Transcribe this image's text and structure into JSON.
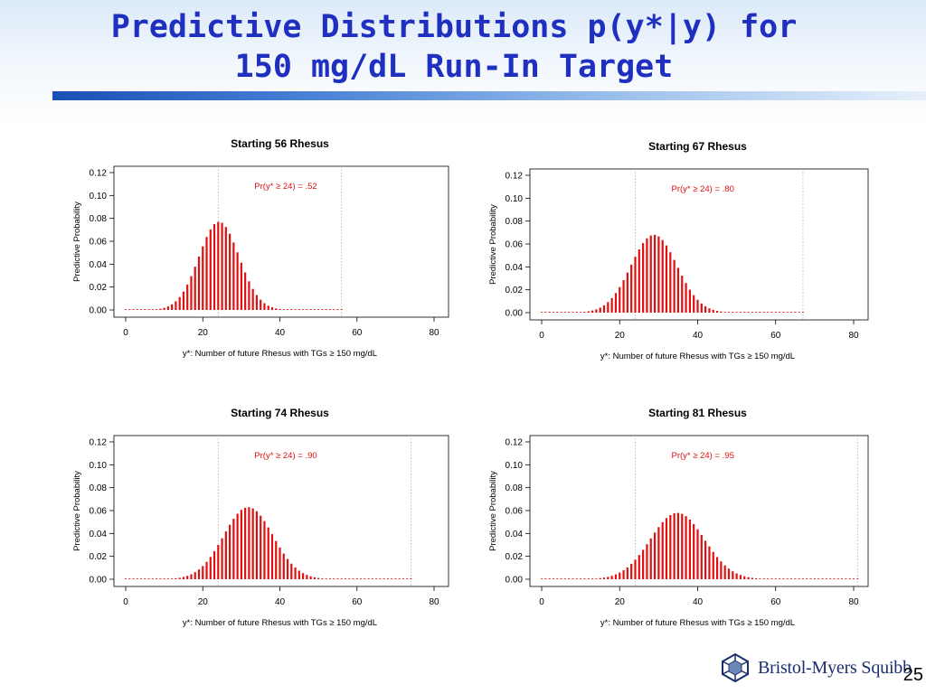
{
  "slide": {
    "title_line1": "Predictive Distributions p(y*|y) for",
    "title_line2": "150 mg/dL Run-In Target",
    "page_number": "25",
    "logo_text": "Bristol-Myers Squibb"
  },
  "colors": {
    "title": "#1f2fbf",
    "bars": "#e01010",
    "reference_line": "#b0b0b0"
  },
  "chart_data": [
    {
      "type": "bar",
      "title": "Starting 56 Rhesus",
      "xlabel": "y*: Number of future Rhesus with TGs ≥ 150 mg/dL",
      "ylabel": "Predictive Probability",
      "xlim": [
        0,
        80
      ],
      "ylim": [
        0,
        0.12
      ],
      "x_ticks": [
        "0",
        "20",
        "40",
        "60",
        "80"
      ],
      "y_ticks": [
        "0.00",
        "0.02",
        "0.04",
        "0.06",
        "0.08",
        "0.10",
        "0.12"
      ],
      "annotation": "Pr(y* ≥ 24) = .52",
      "reference_lines_x": [
        24,
        56
      ],
      "x": [
        0,
        56
      ],
      "mean": 24.2,
      "sd": 5.2,
      "peak": 0.077
    },
    {
      "type": "bar",
      "title": "Starting 67 Rhesus",
      "xlabel": "y*: Number of future Rhesus with TGs ≥ 150 mg/dL",
      "ylabel": "Predictive Probability",
      "xlim": [
        0,
        80
      ],
      "ylim": [
        0,
        0.12
      ],
      "x_ticks": [
        "0",
        "20",
        "40",
        "60",
        "80"
      ],
      "y_ticks": [
        "0.00",
        "0.02",
        "0.04",
        "0.06",
        "0.08",
        "0.10",
        "0.12"
      ],
      "annotation": "Pr(y* ≥ 24) = .80",
      "reference_lines_x": [
        24,
        67
      ],
      "x": [
        0,
        67
      ],
      "mean": 28.8,
      "sd": 5.9,
      "peak": 0.068
    },
    {
      "type": "bar",
      "title": "Starting 74 Rhesus",
      "xlabel": "y*: Number of future Rhesus with TGs ≥ 150 mg/dL",
      "ylabel": "Predictive Probability",
      "xlim": [
        0,
        80
      ],
      "ylim": [
        0,
        0.12
      ],
      "x_ticks": [
        "0",
        "20",
        "40",
        "60",
        "80"
      ],
      "y_ticks": [
        "0.00",
        "0.02",
        "0.04",
        "0.06",
        "0.08",
        "0.10",
        "0.12"
      ],
      "annotation": "Pr(y* ≥ 24) = .90",
      "reference_lines_x": [
        24,
        74
      ],
      "x": [
        0,
        74
      ],
      "mean": 31.8,
      "sd": 6.4,
      "peak": 0.063
    },
    {
      "type": "bar",
      "title": "Starting 81 Rhesus",
      "xlabel": "y*: Number of future Rhesus with TGs ≥ 150 mg/dL",
      "ylabel": "Predictive Probability",
      "xlim": [
        0,
        80
      ],
      "ylim": [
        0,
        0.12
      ],
      "x_ticks": [
        "0",
        "20",
        "40",
        "60",
        "80"
      ],
      "y_ticks": [
        "0.00",
        "0.02",
        "0.04",
        "0.06",
        "0.08",
        "0.10",
        "0.12"
      ],
      "annotation": "Pr(y* ≥ 24) = .95",
      "reference_lines_x": [
        24,
        81
      ],
      "x": [
        0,
        81
      ],
      "mean": 34.8,
      "sd": 6.9,
      "peak": 0.058
    }
  ]
}
